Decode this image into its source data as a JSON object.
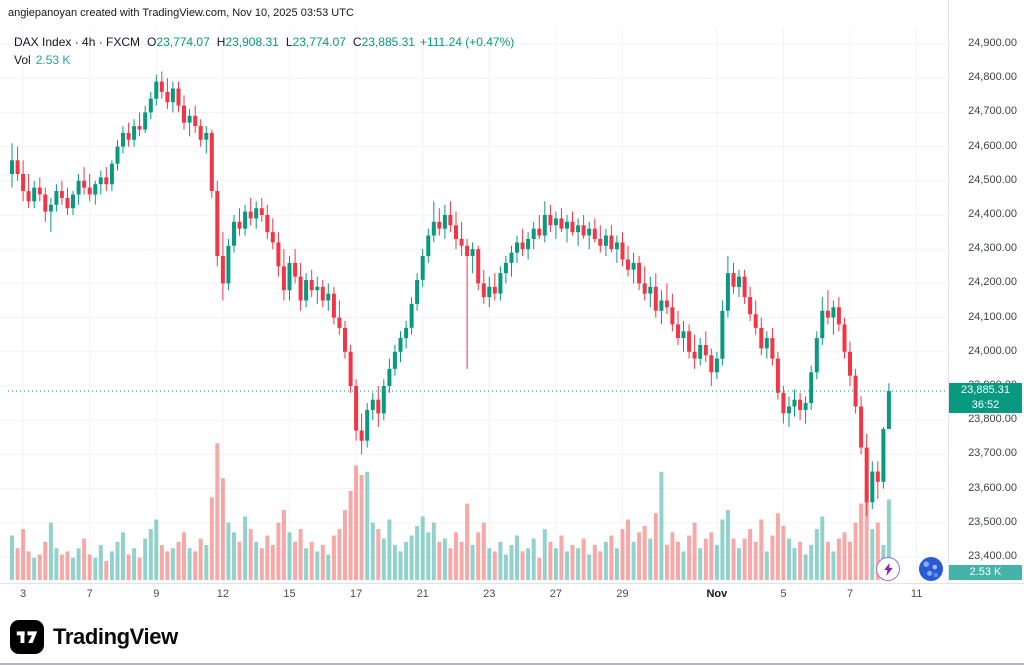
{
  "header": {
    "attribution": "angiepanoyan created with TradingView.com, Nov 10, 2025 03:53 UTC"
  },
  "legend": {
    "title": "DAX Index · 4h · FXCM",
    "o_label": "O",
    "open": "23,774.07",
    "h_label": "H",
    "high": "23,908.31",
    "l_label": "L",
    "low": "23,774.07",
    "c_label": "C",
    "close": "23,885.31",
    "change": "+111.24 (+0.47%)",
    "vol_label": "Vol",
    "vol_value": "2.53 K"
  },
  "footer": {
    "brand": "TradingView",
    "logo_icon": "tradingview-17-monogram"
  },
  "buttons": {
    "boost_icon": "lightning-bolt-icon",
    "avatar_icon": "user-avatar"
  },
  "chart_data": {
    "type": "candlestick",
    "symbol": "DAX Index",
    "interval": "4h",
    "exchange": "FXCM",
    "last_price": 23885.31,
    "last_price_label": "23,885.31",
    "countdown": "36:52",
    "volume_label": "2.53 K",
    "grid": "on",
    "y_axis": {
      "max": 24900,
      "min": 23400,
      "step": 100,
      "tick_labels": [
        "24,900.00",
        "24,800.00",
        "24,700.00",
        "24,600.00",
        "24,500.00",
        "24,400.00",
        "24,300.00",
        "24,200.00",
        "24,100.00",
        "24,000.00",
        "23,900.00",
        "23,800.00",
        "23,700.00",
        "23,600.00",
        "23,500.00",
        "23,400.00"
      ]
    },
    "x_axis": {
      "labels": [
        {
          "label": "3",
          "index": 2
        },
        {
          "label": "7",
          "index": 14
        },
        {
          "label": "9",
          "index": 26
        },
        {
          "label": "12",
          "index": 38
        },
        {
          "label": "15",
          "index": 50
        },
        {
          "label": "17",
          "index": 62
        },
        {
          "label": "21",
          "index": 74
        },
        {
          "label": "23",
          "index": 86
        },
        {
          "label": "27",
          "index": 98
        },
        {
          "label": "29",
          "index": 110
        },
        {
          "label": "Nov",
          "index": 127,
          "month": true
        },
        {
          "label": "5",
          "index": 139
        },
        {
          "label": "7",
          "index": 151
        },
        {
          "label": "11",
          "index": 163
        }
      ]
    },
    "colors": {
      "up": "#089981",
      "down": "#f23645",
      "vol_up": "rgba(38,166,154,0.5)",
      "vol_down": "rgba(239,83,80,0.5)",
      "grid": "#f0f3fa",
      "axis_border": "#e0e3eb",
      "price_tag": "#089981",
      "vol_tag": "rgba(38,166,154,0.85)"
    },
    "candles": [
      [
        24520,
        24610,
        24480,
        24560,
        1.4
      ],
      [
        24560,
        24600,
        24500,
        24520,
        1.0
      ],
      [
        24520,
        24560,
        24440,
        24470,
        1.6
      ],
      [
        24470,
        24520,
        24420,
        24440,
        0.9
      ],
      [
        24440,
        24500,
        24420,
        24480,
        0.7
      ],
      [
        24480,
        24510,
        24440,
        24460,
        0.8
      ],
      [
        24460,
        24480,
        24380,
        24410,
        1.2
      ],
      [
        24410,
        24450,
        24350,
        24430,
        1.8
      ],
      [
        24430,
        24490,
        24410,
        24470,
        1.0
      ],
      [
        24470,
        24500,
        24430,
        24450,
        0.8
      ],
      [
        24450,
        24480,
        24400,
        24420,
        0.9
      ],
      [
        24420,
        24470,
        24400,
        24460,
        0.7
      ],
      [
        24460,
        24520,
        24430,
        24500,
        1.0
      ],
      [
        24500,
        24540,
        24460,
        24480,
        1.3
      ],
      [
        24480,
        24520,
        24440,
        24460,
        0.8
      ],
      [
        24460,
        24500,
        24430,
        24490,
        0.7
      ],
      [
        24490,
        24530,
        24460,
        24510,
        1.1
      ],
      [
        24510,
        24540,
        24470,
        24490,
        0.6
      ],
      [
        24490,
        24560,
        24470,
        24550,
        0.9
      ],
      [
        24550,
        24620,
        24530,
        24600,
        1.2
      ],
      [
        24600,
        24660,
        24580,
        24640,
        1.5
      ],
      [
        24640,
        24670,
        24600,
        24620,
        0.8
      ],
      [
        24620,
        24680,
        24600,
        24660,
        1.0
      ],
      [
        24660,
        24700,
        24630,
        24650,
        0.7
      ],
      [
        24650,
        24720,
        24640,
        24700,
        1.3
      ],
      [
        24700,
        24760,
        24680,
        24740,
        1.6
      ],
      [
        24740,
        24810,
        24720,
        24790,
        1.9
      ],
      [
        24790,
        24820,
        24740,
        24760,
        1.1
      ],
      [
        24760,
        24800,
        24710,
        24730,
        0.9
      ],
      [
        24730,
        24790,
        24700,
        24770,
        1.0
      ],
      [
        24770,
        24790,
        24700,
        24720,
        1.2
      ],
      [
        24720,
        24750,
        24650,
        24670,
        1.5
      ],
      [
        24670,
        24710,
        24630,
        24690,
        1.0
      ],
      [
        24690,
        24720,
        24640,
        24660,
        0.9
      ],
      [
        24660,
        24680,
        24600,
        24620,
        1.3
      ],
      [
        24620,
        24660,
        24580,
        24640,
        1.1
      ],
      [
        24640,
        24650,
        24450,
        24470,
        2.6
      ],
      [
        24470,
        24500,
        24250,
        24280,
        4.3
      ],
      [
        24280,
        24350,
        24150,
        24200,
        3.2
      ],
      [
        24200,
        24330,
        24180,
        24310,
        1.8
      ],
      [
        24310,
        24400,
        24290,
        24380,
        1.5
      ],
      [
        24380,
        24420,
        24340,
        24360,
        1.2
      ],
      [
        24360,
        24430,
        24340,
        24410,
        2.0
      ],
      [
        24410,
        24450,
        24370,
        24390,
        1.6
      ],
      [
        24390,
        24440,
        24360,
        24420,
        1.2
      ],
      [
        24420,
        24450,
        24380,
        24400,
        1.0
      ],
      [
        24400,
        24430,
        24330,
        24350,
        1.4
      ],
      [
        24350,
        24390,
        24300,
        24320,
        1.1
      ],
      [
        24320,
        24350,
        24220,
        24250,
        1.8
      ],
      [
        24250,
        24300,
        24150,
        24180,
        2.2
      ],
      [
        24180,
        24280,
        24150,
        24260,
        1.5
      ],
      [
        24260,
        24300,
        24200,
        24220,
        1.2
      ],
      [
        24220,
        24260,
        24120,
        24150,
        1.6
      ],
      [
        24150,
        24230,
        24130,
        24210,
        1.0
      ],
      [
        24210,
        24240,
        24160,
        24180,
        1.2
      ],
      [
        24180,
        24220,
        24140,
        24190,
        0.9
      ],
      [
        24190,
        24210,
        24130,
        24150,
        1.1
      ],
      [
        24150,
        24200,
        24120,
        24170,
        0.8
      ],
      [
        24170,
        24190,
        24080,
        24100,
        1.4
      ],
      [
        24100,
        24150,
        24050,
        24070,
        1.6
      ],
      [
        24070,
        24090,
        23980,
        24000,
        2.2
      ],
      [
        24000,
        24020,
        23880,
        23900,
        2.8
      ],
      [
        23900,
        23920,
        23740,
        23770,
        3.6
      ],
      [
        23770,
        23820,
        23700,
        23740,
        3.3
      ],
      [
        23740,
        23850,
        23720,
        23830,
        3.4
      ],
      [
        23830,
        23880,
        23800,
        23860,
        1.8
      ],
      [
        23860,
        23900,
        23780,
        23820,
        1.6
      ],
      [
        23820,
        23920,
        23800,
        23900,
        1.3
      ],
      [
        23900,
        23980,
        23880,
        23950,
        1.9
      ],
      [
        23950,
        24020,
        23930,
        24000,
        1.1
      ],
      [
        24000,
        24060,
        23970,
        24040,
        0.9
      ],
      [
        24040,
        24090,
        24010,
        24070,
        1.2
      ],
      [
        24070,
        24160,
        24050,
        24140,
        1.4
      ],
      [
        24140,
        24230,
        24120,
        24210,
        1.7
      ],
      [
        24210,
        24300,
        24190,
        24280,
        2.0
      ],
      [
        24280,
        24360,
        24260,
        24340,
        1.5
      ],
      [
        24340,
        24440,
        24320,
        24380,
        1.8
      ],
      [
        24380,
        24420,
        24340,
        24360,
        1.2
      ],
      [
        24360,
        24430,
        24330,
        24400,
        1.3
      ],
      [
        24400,
        24440,
        24350,
        24370,
        1.0
      ],
      [
        24370,
        24410,
        24300,
        24330,
        1.5
      ],
      [
        24330,
        24380,
        24280,
        24310,
        1.2
      ],
      [
        24310,
        24330,
        23950,
        24280,
        2.4
      ],
      [
        24280,
        24320,
        24230,
        24300,
        1.1
      ],
      [
        24300,
        24310,
        24180,
        24200,
        1.5
      ],
      [
        24200,
        24240,
        24140,
        24160,
        1.8
      ],
      [
        24160,
        24220,
        24130,
        24190,
        1.0
      ],
      [
        24190,
        24230,
        24150,
        24170,
        0.9
      ],
      [
        24170,
        24250,
        24150,
        24230,
        1.2
      ],
      [
        24230,
        24280,
        24200,
        24260,
        0.8
      ],
      [
        24260,
        24310,
        24220,
        24290,
        1.1
      ],
      [
        24290,
        24340,
        24260,
        24320,
        1.4
      ],
      [
        24320,
        24360,
        24280,
        24300,
        0.9
      ],
      [
        24300,
        24350,
        24270,
        24330,
        1.0
      ],
      [
        24330,
        24380,
        24300,
        24360,
        1.3
      ],
      [
        24360,
        24400,
        24330,
        24340,
        0.7
      ],
      [
        24340,
        24440,
        24320,
        24400,
        1.6
      ],
      [
        24400,
        24430,
        24350,
        24370,
        1.2
      ],
      [
        24370,
        24410,
        24330,
        24390,
        1.0
      ],
      [
        24390,
        24420,
        24350,
        24360,
        1.4
      ],
      [
        24360,
        24400,
        24320,
        24380,
        0.9
      ],
      [
        24380,
        24410,
        24340,
        24350,
        1.1
      ],
      [
        24350,
        24390,
        24310,
        24370,
        1.0
      ],
      [
        24370,
        24400,
        24330,
        24340,
        1.3
      ],
      [
        24340,
        24380,
        24300,
        24360,
        0.8
      ],
      [
        24360,
        24390,
        24320,
        24330,
        1.1
      ],
      [
        24330,
        24370,
        24290,
        24310,
        0.9
      ],
      [
        24310,
        24360,
        24280,
        24340,
        1.2
      ],
      [
        24340,
        24370,
        24290,
        24300,
        1.4
      ],
      [
        24300,
        24340,
        24260,
        24320,
        1.0
      ],
      [
        24320,
        24350,
        24250,
        24270,
        1.6
      ],
      [
        24270,
        24310,
        24220,
        24240,
        1.9
      ],
      [
        24240,
        24290,
        24200,
        24260,
        1.2
      ],
      [
        24260,
        24280,
        24180,
        24200,
        1.5
      ],
      [
        24200,
        24250,
        24150,
        24170,
        1.7
      ],
      [
        24170,
        24220,
        24130,
        24190,
        1.3
      ],
      [
        24190,
        24230,
        24100,
        24120,
        2.1
      ],
      [
        24120,
        24180,
        24080,
        24150,
        3.4
      ],
      [
        24150,
        24200,
        24110,
        24130,
        1.1
      ],
      [
        24130,
        24170,
        24060,
        24080,
        1.5
      ],
      [
        24080,
        24120,
        24020,
        24040,
        1.2
      ],
      [
        24040,
        24090,
        24000,
        24060,
        0.9
      ],
      [
        24060,
        24080,
        23980,
        24000,
        1.4
      ],
      [
        24000,
        24050,
        23950,
        23980,
        1.8
      ],
      [
        23980,
        24040,
        23960,
        24020,
        1.0
      ],
      [
        24020,
        24060,
        23970,
        23990,
        1.3
      ],
      [
        23990,
        24010,
        23900,
        23940,
        1.5
      ],
      [
        23940,
        24000,
        23920,
        23980,
        1.1
      ],
      [
        23980,
        24150,
        23960,
        24120,
        1.9
      ],
      [
        24120,
        24280,
        24100,
        24230,
        2.2
      ],
      [
        24230,
        24260,
        24170,
        24190,
        1.3
      ],
      [
        24190,
        24240,
        24160,
        24220,
        1.0
      ],
      [
        24220,
        24240,
        24140,
        24160,
        1.3
      ],
      [
        24160,
        24190,
        24090,
        24110,
        1.6
      ],
      [
        24110,
        24150,
        24050,
        24070,
        1.2
      ],
      [
        24070,
        24100,
        23990,
        24010,
        1.9
      ],
      [
        24010,
        24060,
        23980,
        24040,
        0.9
      ],
      [
        24040,
        24070,
        23960,
        23980,
        1.4
      ],
      [
        23980,
        24000,
        23860,
        23880,
        2.1
      ],
      [
        23880,
        23900,
        23790,
        23820,
        1.7
      ],
      [
        23820,
        23870,
        23780,
        23840,
        1.3
      ],
      [
        23840,
        23890,
        23810,
        23860,
        1.0
      ],
      [
        23860,
        23880,
        23800,
        23830,
        1.2
      ],
      [
        23830,
        23870,
        23790,
        23850,
        0.8
      ],
      [
        23850,
        23960,
        23830,
        23940,
        1.1
      ],
      [
        23940,
        24060,
        23920,
        24040,
        1.6
      ],
      [
        24040,
        24160,
        24020,
        24120,
        2.0
      ],
      [
        24120,
        24180,
        24080,
        24100,
        1.2
      ],
      [
        24100,
        24150,
        24050,
        24130,
        0.9
      ],
      [
        24130,
        24160,
        24060,
        24080,
        1.3
      ],
      [
        24080,
        24100,
        23980,
        24000,
        1.5
      ],
      [
        24000,
        24030,
        23900,
        23930,
        1.2
      ],
      [
        23930,
        23950,
        23820,
        23840,
        1.8
      ],
      [
        23840,
        23870,
        23700,
        23720,
        2.4
      ],
      [
        23720,
        23760,
        23520,
        23560,
        2.9
      ],
      [
        23560,
        23680,
        23540,
        23650,
        1.6
      ],
      [
        23650,
        23680,
        23570,
        23620,
        1.8
      ],
      [
        23620,
        23780,
        23600,
        23774,
        1.1
      ],
      [
        23774.07,
        23908.31,
        23774.07,
        23885.31,
        2.53
      ]
    ]
  }
}
